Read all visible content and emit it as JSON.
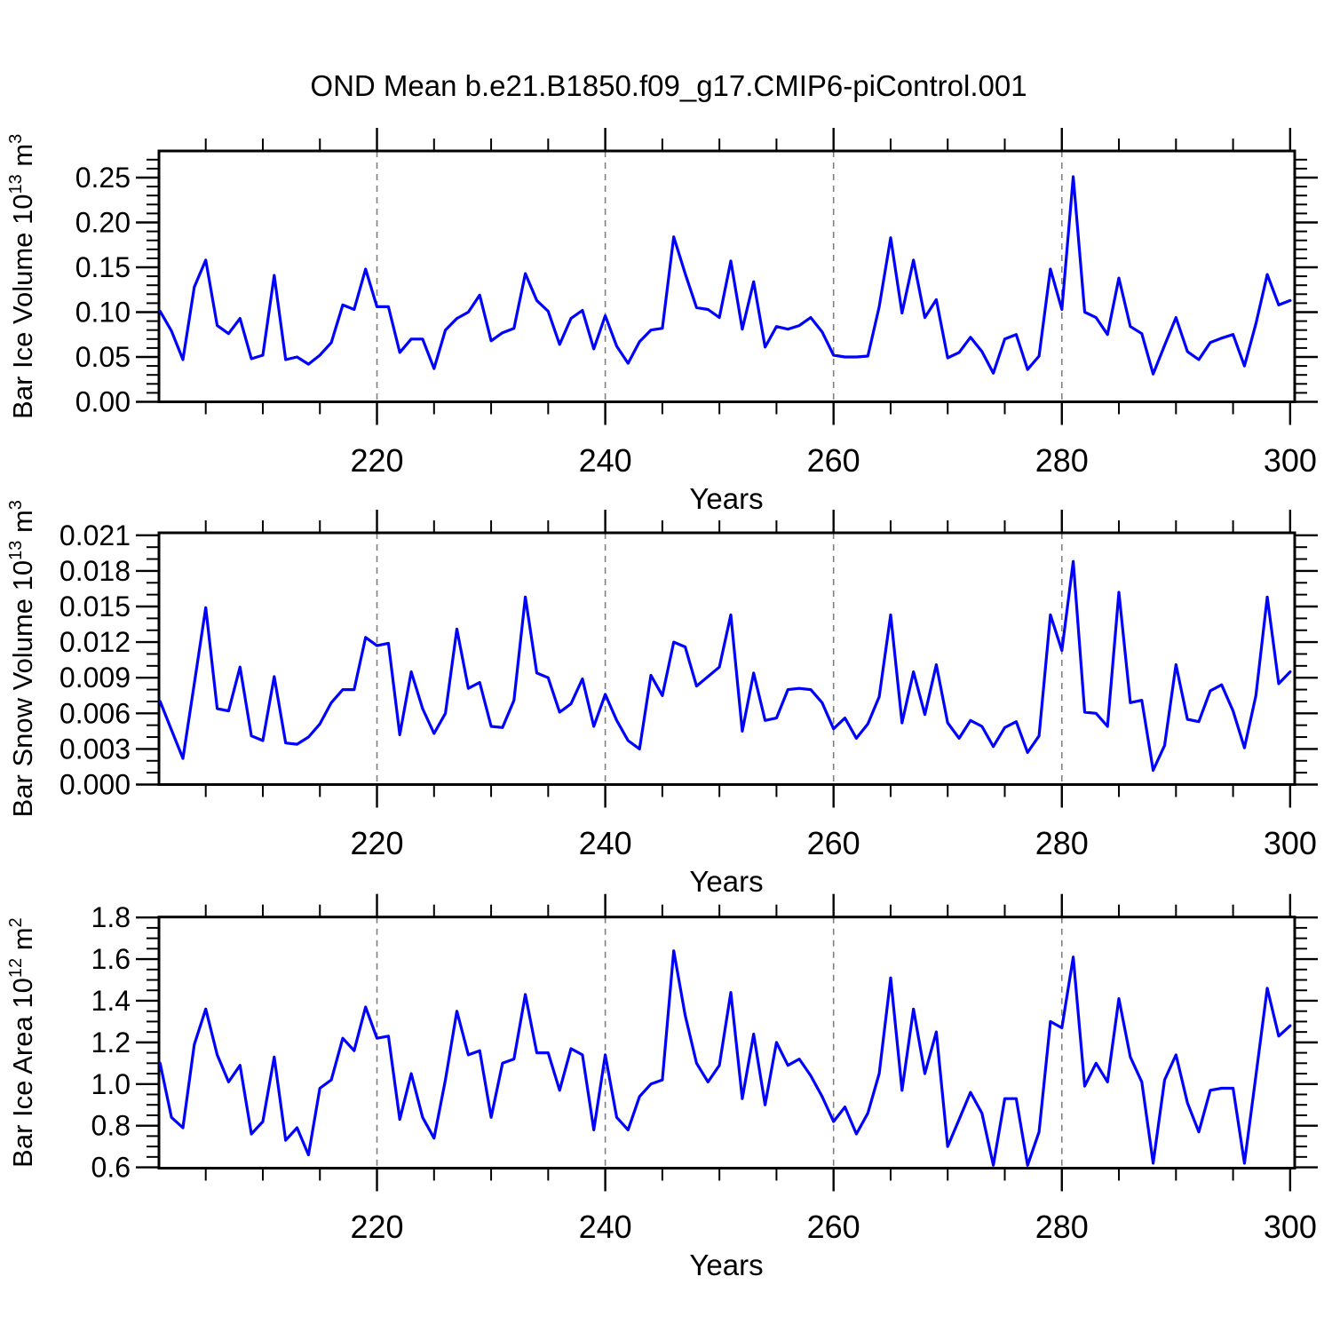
{
  "title": "OND Mean b.e21.B1850.f09_g17.CMIP6-piControl.001",
  "xlabel": "Years",
  "colors": {
    "line": "#0000fe",
    "frame": "#000000",
    "gridline": "#808080"
  },
  "chart_data": {
    "type": "line",
    "xlabel": "Years",
    "legend": "none",
    "x_years": [
      201,
      202,
      203,
      204,
      205,
      206,
      207,
      208,
      209,
      210,
      211,
      212,
      213,
      214,
      215,
      216,
      217,
      218,
      219,
      220,
      221,
      222,
      223,
      224,
      225,
      226,
      227,
      228,
      229,
      230,
      231,
      232,
      233,
      234,
      235,
      236,
      237,
      238,
      239,
      240,
      241,
      242,
      243,
      244,
      245,
      246,
      247,
      248,
      249,
      250,
      251,
      252,
      253,
      254,
      255,
      256,
      257,
      258,
      259,
      260,
      261,
      262,
      263,
      264,
      265,
      266,
      267,
      268,
      269,
      270,
      271,
      272,
      273,
      274,
      275,
      276,
      277,
      278,
      279,
      280,
      281,
      282,
      283,
      284,
      285,
      286,
      287,
      288,
      289,
      290,
      291,
      292,
      293,
      294,
      295,
      296,
      297,
      298,
      299,
      300
    ],
    "xlim": [
      200.9,
      300.4
    ],
    "x_ticks_major": [
      220,
      240,
      260,
      280,
      300
    ],
    "x_tick_labels": [
      "220",
      "240",
      "260",
      "280",
      "300"
    ],
    "x_minor_step": 5,
    "x_gridlines": [
      220,
      240,
      260,
      280
    ],
    "panels": [
      {
        "name": "ice-volume",
        "ylabel": "Bar Ice Volume 10^13 m^3",
        "ylabel_segments": [
          {
            "t": "Bar Ice Volume 10",
            "sup": false
          },
          {
            "t": "13",
            "sup": true
          },
          {
            "t": " m",
            "sup": false
          },
          {
            "t": "3",
            "sup": true
          }
        ],
        "ylim": [
          0,
          0.2797
        ],
        "y_ticks_major": [
          0.0,
          0.05,
          0.1,
          0.15,
          0.2,
          0.25
        ],
        "y_tick_labels": [
          "0.00",
          "0.05",
          "0.10",
          "0.15",
          "0.20",
          "0.25"
        ],
        "y_minor_step": 0.01,
        "values": [
          0.101,
          0.079,
          0.047,
          0.128,
          0.158,
          0.085,
          0.076,
          0.093,
          0.048,
          0.052,
          0.141,
          0.047,
          0.05,
          0.042,
          0.052,
          0.066,
          0.108,
          0.103,
          0.148,
          0.106,
          0.106,
          0.055,
          0.07,
          0.07,
          0.037,
          0.08,
          0.093,
          0.1,
          0.119,
          0.068,
          0.077,
          0.082,
          0.143,
          0.113,
          0.101,
          0.064,
          0.093,
          0.102,
          0.059,
          0.096,
          0.062,
          0.043,
          0.067,
          0.08,
          0.082,
          0.184,
          0.143,
          0.105,
          0.103,
          0.094,
          0.157,
          0.081,
          0.134,
          0.061,
          0.084,
          0.081,
          0.085,
          0.094,
          0.078,
          0.052,
          0.05,
          0.05,
          0.051,
          0.106,
          0.183,
          0.099,
          0.158,
          0.094,
          0.114,
          0.049,
          0.055,
          0.072,
          0.056,
          0.032,
          0.07,
          0.075,
          0.036,
          0.051,
          0.148,
          0.103,
          0.251,
          0.1,
          0.094,
          0.075,
          0.138,
          0.084,
          0.076,
          0.031,
          0.063,
          0.094,
          0.056,
          0.047,
          0.066,
          0.071,
          0.075,
          0.04,
          0.087,
          0.142,
          0.108,
          0.113
        ]
      },
      {
        "name": "snow-volume",
        "ylabel": "Bar Snow Volume 10^13 m^3",
        "ylabel_segments": [
          {
            "t": "Bar Snow Volume 10",
            "sup": false
          },
          {
            "t": "13",
            "sup": true
          },
          {
            "t": " m",
            "sup": false
          },
          {
            "t": "3",
            "sup": true
          }
        ],
        "ylim": [
          0,
          0.02121
        ],
        "y_ticks_major": [
          0.0,
          0.003,
          0.006,
          0.009,
          0.012,
          0.015,
          0.018,
          0.021
        ],
        "y_tick_labels": [
          "0.000",
          "0.003",
          "0.006",
          "0.009",
          "0.012",
          "0.015",
          "0.018",
          "0.021"
        ],
        "y_minor_step": 0.001,
        "values": [
          0.007,
          0.0046,
          0.0022,
          0.0085,
          0.0149,
          0.0064,
          0.0062,
          0.0099,
          0.0041,
          0.0037,
          0.0091,
          0.0035,
          0.0034,
          0.004,
          0.0051,
          0.0069,
          0.008,
          0.008,
          0.0124,
          0.0117,
          0.0119,
          0.0042,
          0.0095,
          0.0064,
          0.0043,
          0.006,
          0.0131,
          0.0081,
          0.0086,
          0.0049,
          0.0048,
          0.0071,
          0.0158,
          0.0094,
          0.009,
          0.0061,
          0.0068,
          0.0089,
          0.0049,
          0.0076,
          0.0054,
          0.0037,
          0.003,
          0.0092,
          0.0075,
          0.012,
          0.0116,
          0.0083,
          0.0091,
          0.0099,
          0.0143,
          0.0045,
          0.0094,
          0.0054,
          0.0056,
          0.008,
          0.0081,
          0.008,
          0.0069,
          0.0047,
          0.0056,
          0.0039,
          0.0051,
          0.0074,
          0.0143,
          0.0052,
          0.0095,
          0.0059,
          0.0101,
          0.0052,
          0.0039,
          0.0054,
          0.0049,
          0.0032,
          0.0048,
          0.0053,
          0.0027,
          0.0041,
          0.0143,
          0.0113,
          0.0188,
          0.0061,
          0.006,
          0.0049,
          0.0162,
          0.0069,
          0.0071,
          0.0012,
          0.0033,
          0.0101,
          0.0055,
          0.0053,
          0.0079,
          0.0084,
          0.0062,
          0.0031,
          0.0075,
          0.0158,
          0.0085,
          0.0095
        ]
      },
      {
        "name": "ice-area",
        "ylabel": "Bar Ice Area 10^12 m^2",
        "ylabel_segments": [
          {
            "t": "Bar Ice Area 10",
            "sup": false
          },
          {
            "t": "12",
            "sup": true
          },
          {
            "t": " m",
            "sup": false
          },
          {
            "t": "2",
            "sup": true
          }
        ],
        "ylim": [
          0.596,
          1.802
        ],
        "y_ticks_major": [
          0.6,
          0.8,
          1.0,
          1.2,
          1.4,
          1.6,
          1.8
        ],
        "y_tick_labels": [
          "0.6",
          "0.8",
          "1.0",
          "1.2",
          "1.4",
          "1.6",
          "1.8"
        ],
        "y_minor_step": 0.05,
        "values": [
          1.1,
          0.84,
          0.79,
          1.19,
          1.36,
          1.14,
          1.01,
          1.09,
          0.76,
          0.82,
          1.13,
          0.73,
          0.79,
          0.66,
          0.98,
          1.02,
          1.22,
          1.16,
          1.37,
          1.22,
          1.23,
          0.83,
          1.05,
          0.84,
          0.74,
          1.02,
          1.35,
          1.14,
          1.16,
          0.84,
          1.1,
          1.12,
          1.43,
          1.15,
          1.15,
          0.97,
          1.17,
          1.14,
          0.78,
          1.14,
          0.84,
          0.78,
          0.94,
          1.0,
          1.02,
          1.64,
          1.33,
          1.1,
          1.01,
          1.09,
          1.44,
          0.93,
          1.24,
          0.9,
          1.2,
          1.09,
          1.12,
          1.04,
          0.94,
          0.82,
          0.89,
          0.76,
          0.86,
          1.05,
          1.51,
          0.97,
          1.36,
          1.05,
          1.25,
          0.7,
          0.83,
          0.96,
          0.86,
          0.61,
          0.93,
          0.93,
          0.61,
          0.77,
          1.3,
          1.27,
          1.61,
          0.99,
          1.1,
          1.01,
          1.41,
          1.13,
          1.01,
          0.62,
          1.02,
          1.14,
          0.91,
          0.77,
          0.97,
          0.98,
          0.98,
          0.62,
          1.04,
          1.46,
          1.23,
          1.28
        ]
      }
    ]
  }
}
